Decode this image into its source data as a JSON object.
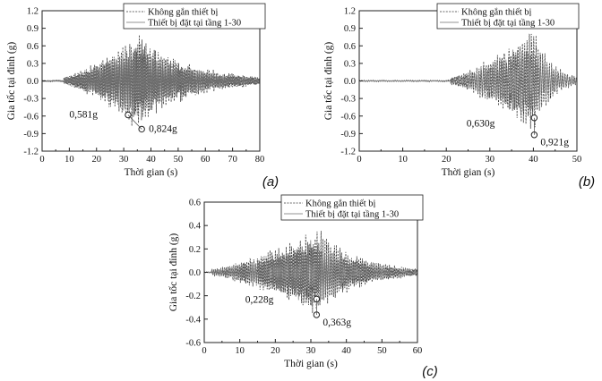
{
  "chart_data": [
    {
      "type": "line",
      "panel_label": "(a)",
      "xlabel": "Thời gian (s)",
      "ylabel": "Gia tốc tại đỉnh (g)",
      "xlim": [
        0,
        80
      ],
      "ylim": [
        -1.2,
        1.2
      ],
      "x_ticks": [
        "0",
        "10",
        "20",
        "30",
        "40",
        "50",
        "60",
        "70",
        "80"
      ],
      "y_ticks": [
        "-1.2",
        "-0.9",
        "-0.6",
        "-0.3",
        "0.0",
        "0.3",
        "0.6",
        "0.9",
        "1.2"
      ],
      "grid": false,
      "legend_position": "top-right",
      "series": [
        {
          "name": "Không gắn thiết bị",
          "style": "dashed",
          "color": "#3a3a3a",
          "signal": {
            "duration": 80,
            "onset": 8,
            "peak_time": 35,
            "peak_amp": 0.72,
            "decay_end": 80,
            "seed": 11
          }
        },
        {
          "name": "Thiết bị đặt tại tầng 1-30",
          "style": "solid",
          "color": "#6f6f6f",
          "signal": {
            "duration": 80,
            "onset": 8,
            "peak_time": 34,
            "peak_amp": 0.55,
            "decay_end": 80,
            "seed": 23
          }
        }
      ],
      "annotations": [
        {
          "text": "0,581g",
          "x": 31.6,
          "y": -0.581
        },
        {
          "text": "0,824g",
          "x": 36.6,
          "y": -0.824
        }
      ]
    },
    {
      "type": "line",
      "panel_label": "(b)",
      "xlabel": "Thời gian (s)",
      "ylabel": "Gia tốc tại đỉnh (g)",
      "xlim": [
        0,
        50
      ],
      "ylim": [
        -1.2,
        1.2
      ],
      "x_ticks": [
        "0",
        "10",
        "20",
        "30",
        "40",
        "50"
      ],
      "y_ticks": [
        "-1.2",
        "-0.9",
        "-0.6",
        "-0.3",
        "0.0",
        "0.3",
        "0.6",
        "0.9",
        "1.2"
      ],
      "grid": false,
      "legend_position": "top-right",
      "series": [
        {
          "name": "Không gắn thiết bị",
          "style": "dashed",
          "color": "#3a3a3a",
          "signal": {
            "duration": 50,
            "onset": 21,
            "peak_time": 40,
            "peak_amp": 0.78,
            "decay_end": 50,
            "seed": 37
          }
        },
        {
          "name": "Thiết bị đặt tại tầng 1-30",
          "style": "solid",
          "color": "#6f6f6f",
          "signal": {
            "duration": 50,
            "onset": 21,
            "peak_time": 39,
            "peak_amp": 0.6,
            "decay_end": 50,
            "seed": 41
          }
        }
      ],
      "annotations": [
        {
          "text": "0,630g",
          "x": 40.2,
          "y": -0.63
        },
        {
          "text": "0,921g",
          "x": 40.2,
          "y": -0.921
        }
      ]
    },
    {
      "type": "line",
      "panel_label": "(c)",
      "xlabel": "Thời gian (s)",
      "ylabel": "Gia tốc tại đỉnh (g)",
      "xlim": [
        0,
        60
      ],
      "ylim": [
        -0.6,
        0.6
      ],
      "x_ticks": [
        "0",
        "10",
        "20",
        "30",
        "40",
        "50",
        "60"
      ],
      "y_ticks": [
        "-0.6",
        "-0.4",
        "-0.2",
        "0.0",
        "0.2",
        "0.4",
        "0.6"
      ],
      "grid": false,
      "legend_position": "top-right",
      "series": [
        {
          "name": "Không gắn thiết bị",
          "style": "dashed",
          "color": "#3a3a3a",
          "signal": {
            "duration": 60,
            "onset": 2,
            "peak_time": 32,
            "peak_amp": 0.33,
            "decay_end": 60,
            "seed": 53
          }
        },
        {
          "name": "Thiết bị đặt tại tầng 1-30",
          "style": "solid",
          "color": "#6f6f6f",
          "signal": {
            "duration": 60,
            "onset": 2,
            "peak_time": 31,
            "peak_amp": 0.24,
            "decay_end": 60,
            "seed": 67
          }
        }
      ],
      "annotations": [
        {
          "text": "0,228g",
          "x": 31.6,
          "y": -0.228
        },
        {
          "text": "0,363g",
          "x": 31.6,
          "y": -0.363
        }
      ]
    }
  ]
}
